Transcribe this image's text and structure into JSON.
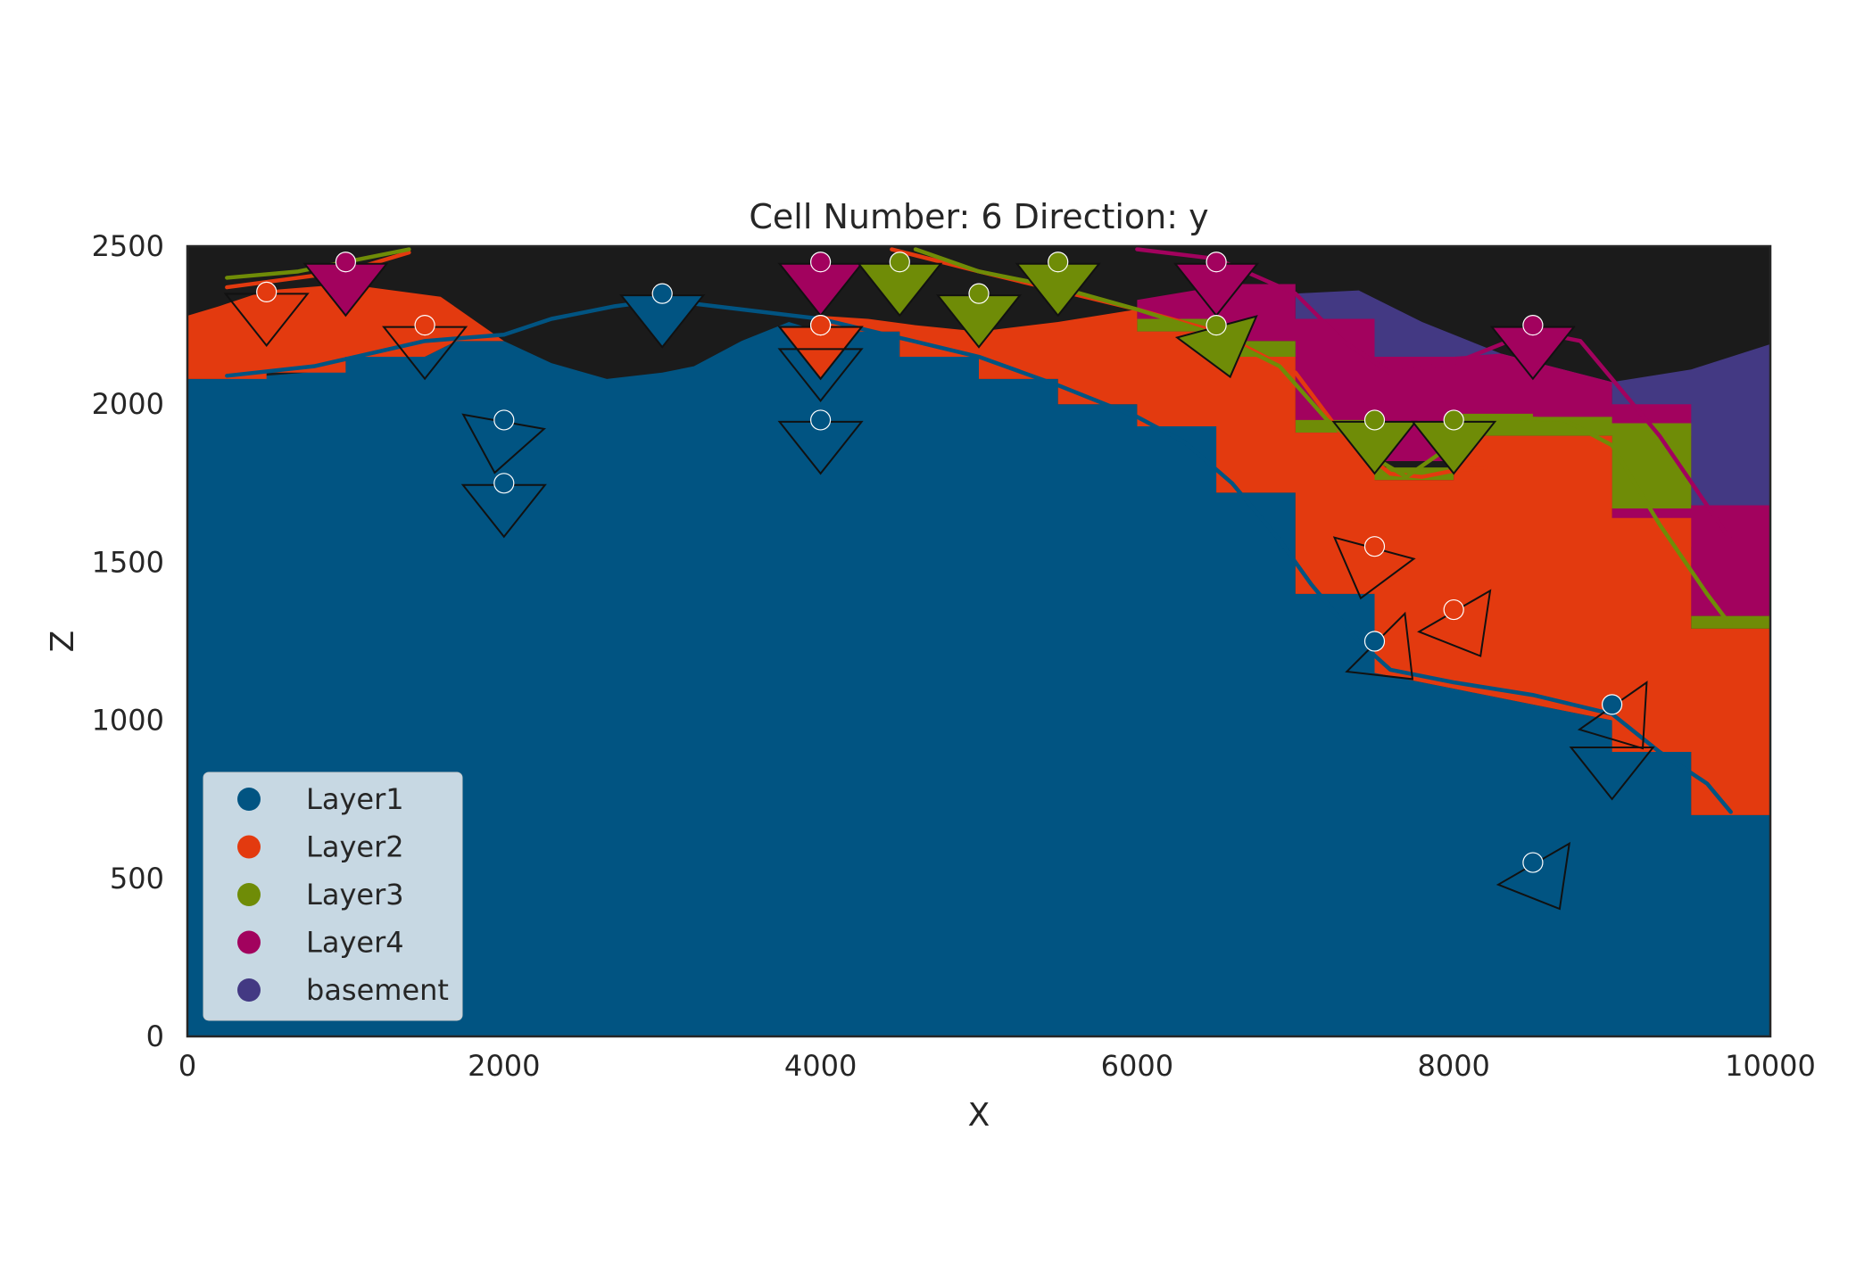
{
  "chart_data": {
    "type": "geological-section",
    "title": "Cell Number: 6 Direction: y",
    "xlabel": "X",
    "ylabel": "Z",
    "xlim": [
      0,
      10000
    ],
    "ylim": [
      0,
      2500
    ],
    "x_ticks": [
      0,
      2000,
      4000,
      6000,
      8000,
      10000
    ],
    "y_ticks": [
      0,
      500,
      1000,
      1500,
      2000,
      2500
    ],
    "grid": false,
    "legend_placement": "lower-left",
    "background_color": "#1b1b1b",
    "series": [
      {
        "name": "Layer1",
        "color": "#015482"
      },
      {
        "name": "Layer2",
        "color": "#e33a0f"
      },
      {
        "name": "Layer3",
        "color": "#6f8c07"
      },
      {
        "name": "Layer4",
        "color": "#a2025e"
      },
      {
        "name": "basement",
        "color": "#433983"
      }
    ],
    "regions": [
      {
        "layer": "basement",
        "polygon": [
          [
            7000,
            2350
          ],
          [
            7400,
            2360
          ],
          [
            7800,
            2260
          ],
          [
            8300,
            2160
          ],
          [
            9000,
            2070
          ],
          [
            9500,
            2110
          ],
          [
            10000,
            2190
          ],
          [
            10000,
            1350
          ],
          [
            9500,
            1350
          ],
          [
            9500,
            1900
          ],
          [
            9000,
            1900
          ],
          [
            9000,
            2050
          ],
          [
            7000,
            2050
          ]
        ]
      },
      {
        "layer": "Layer4",
        "polygon": [
          [
            6000,
            2330
          ],
          [
            6600,
            2380
          ],
          [
            7000,
            2380
          ],
          [
            7000,
            2270
          ],
          [
            7500,
            2270
          ],
          [
            7500,
            2150
          ],
          [
            8000,
            2150
          ],
          [
            8300,
            2160
          ],
          [
            9000,
            2070
          ],
          [
            9000,
            2000
          ],
          [
            9500,
            2000
          ],
          [
            9500,
            1680
          ],
          [
            10000,
            1680
          ],
          [
            10000,
            1330
          ],
          [
            9500,
            1330
          ],
          [
            9500,
            1550
          ],
          [
            9000,
            1550
          ],
          [
            9000,
            1650
          ],
          [
            9000,
            1900
          ],
          [
            8000,
            1900
          ],
          [
            8000,
            1820
          ],
          [
            7000,
            1820
          ],
          [
            7000,
            2200
          ],
          [
            6000,
            2200
          ]
        ]
      },
      {
        "layer": "Layer3",
        "polygon": [
          [
            6000,
            2270
          ],
          [
            6500,
            2270
          ],
          [
            6500,
            2200
          ],
          [
            7000,
            2200
          ],
          [
            7000,
            1950
          ],
          [
            7500,
            1950
          ],
          [
            7500,
            1800
          ],
          [
            8000,
            1800
          ],
          [
            8000,
            1970
          ],
          [
            8500,
            1970
          ],
          [
            8500,
            1960
          ],
          [
            9000,
            1960
          ],
          [
            9000,
            1940
          ],
          [
            9500,
            1940
          ],
          [
            9500,
            1670
          ],
          [
            9000,
            1670
          ],
          [
            9000,
            1700
          ],
          [
            9000,
            1900
          ],
          [
            8000,
            1900
          ],
          [
            8000,
            1760
          ],
          [
            7500,
            1760
          ],
          [
            7500,
            1910
          ],
          [
            7000,
            1910
          ],
          [
            7000,
            2150
          ],
          [
            6500,
            2150
          ],
          [
            6500,
            2230
          ],
          [
            6000,
            2230
          ]
        ]
      },
      {
        "layer": "Layer4",
        "polygon": [
          [
            9500,
            1680
          ],
          [
            10000,
            1680
          ],
          [
            10000,
            1330
          ],
          [
            9500,
            1330
          ]
        ]
      },
      {
        "layer": "Layer3",
        "polygon": [
          [
            9500,
            1330
          ],
          [
            10000,
            1330
          ],
          [
            10000,
            1290
          ],
          [
            9500,
            1290
          ]
        ]
      },
      {
        "layer": "Layer2",
        "polygon": [
          [
            0,
            2280
          ],
          [
            200,
            2310
          ],
          [
            500,
            2360
          ],
          [
            1000,
            2380
          ],
          [
            1600,
            2340
          ],
          [
            2000,
            2200
          ],
          [
            1700,
            2200
          ],
          [
            1500,
            2150
          ],
          [
            1000,
            2150
          ],
          [
            1000,
            2100
          ],
          [
            500,
            2100
          ],
          [
            500,
            2080
          ],
          [
            0,
            2080
          ]
        ]
      },
      {
        "layer": "Layer2",
        "polygon": [
          [
            4000,
            2280
          ],
          [
            4300,
            2270
          ],
          [
            4600,
            2250
          ],
          [
            5000,
            2230
          ],
          [
            5500,
            2260
          ],
          [
            6000,
            2300
          ],
          [
            6000,
            2230
          ],
          [
            6500,
            2230
          ],
          [
            6500,
            2150
          ],
          [
            7000,
            2150
          ],
          [
            7000,
            1910
          ],
          [
            7500,
            1910
          ],
          [
            7500,
            1760
          ],
          [
            8000,
            1760
          ],
          [
            8000,
            1900
          ],
          [
            9000,
            1900
          ],
          [
            9000,
            1640
          ],
          [
            9500,
            1640
          ],
          [
            9500,
            1290
          ],
          [
            10000,
            1290
          ],
          [
            10000,
            700
          ],
          [
            9500,
            700
          ],
          [
            9500,
            900
          ],
          [
            9000,
            900
          ],
          [
            9000,
            1000
          ],
          [
            8000,
            1100
          ],
          [
            7500,
            1150
          ],
          [
            7500,
            1400
          ],
          [
            7000,
            1400
          ],
          [
            7000,
            1720
          ],
          [
            6500,
            1720
          ],
          [
            6500,
            1930
          ],
          [
            6000,
            1930
          ],
          [
            6000,
            2000
          ],
          [
            5500,
            2000
          ],
          [
            5500,
            2080
          ],
          [
            5000,
            2080
          ],
          [
            5000,
            2150
          ],
          [
            4500,
            2150
          ],
          [
            4500,
            2230
          ],
          [
            4000,
            2230
          ]
        ]
      }
    ],
    "surfaces": [
      {
        "layer": "Layer1",
        "points": [
          [
            250,
            2090
          ],
          [
            800,
            2120
          ],
          [
            1500,
            2200
          ],
          [
            2000,
            2220
          ],
          [
            2300,
            2270
          ],
          [
            2700,
            2310
          ],
          [
            3000,
            2330
          ],
          [
            3500,
            2300
          ],
          [
            4000,
            2270
          ],
          [
            4500,
            2210
          ],
          [
            5000,
            2150
          ],
          [
            5500,
            2060
          ],
          [
            6000,
            1960
          ],
          [
            6300,
            1880
          ],
          [
            6600,
            1750
          ],
          [
            6900,
            1570
          ],
          [
            7100,
            1430
          ],
          [
            7400,
            1250
          ],
          [
            7600,
            1160
          ],
          [
            8000,
            1120
          ],
          [
            8500,
            1080
          ],
          [
            9000,
            1020
          ],
          [
            9300,
            900
          ],
          [
            9600,
            800
          ],
          [
            9750,
            710
          ]
        ]
      },
      {
        "layer": "Layer2",
        "points": [
          [
            250,
            2370
          ],
          [
            700,
            2400
          ],
          [
            1000,
            2420
          ],
          [
            1400,
            2480
          ]
        ]
      },
      {
        "layer": "Layer2",
        "points": [
          [
            4450,
            2490
          ],
          [
            5000,
            2420
          ],
          [
            5500,
            2360
          ],
          [
            6000,
            2300
          ],
          [
            6500,
            2230
          ],
          [
            7000,
            2100
          ],
          [
            7300,
            1900
          ],
          [
            7600,
            1780
          ],
          [
            7800,
            1770
          ],
          [
            8000,
            1790
          ],
          [
            8200,
            1800
          ]
        ]
      },
      {
        "layer": "Layer3",
        "points": [
          [
            250,
            2400
          ],
          [
            700,
            2420
          ],
          [
            1100,
            2460
          ],
          [
            1400,
            2490
          ]
        ]
      },
      {
        "layer": "Layer3",
        "points": [
          [
            4600,
            2490
          ],
          [
            5000,
            2420
          ],
          [
            5500,
            2370
          ],
          [
            6000,
            2300
          ],
          [
            6500,
            2220
          ],
          [
            6900,
            2120
          ],
          [
            7200,
            1950
          ],
          [
            7500,
            1830
          ],
          [
            7700,
            1770
          ],
          [
            7900,
            1840
          ],
          [
            8200,
            1960
          ],
          [
            8700,
            1950
          ],
          [
            9000,
            1870
          ],
          [
            9300,
            1620
          ],
          [
            9600,
            1400
          ],
          [
            9750,
            1300
          ]
        ]
      },
      {
        "layer": "Layer4",
        "points": [
          [
            6000,
            2490
          ],
          [
            6500,
            2460
          ],
          [
            7000,
            2350
          ],
          [
            7300,
            2200
          ],
          [
            7600,
            2100
          ],
          [
            8000,
            2130
          ],
          [
            8500,
            2230
          ],
          [
            8800,
            2200
          ],
          [
            9000,
            2080
          ],
          [
            9300,
            1900
          ],
          [
            9600,
            1680
          ],
          [
            9750,
            1570
          ]
        ]
      }
    ],
    "points": [
      {
        "layer": "Layer2",
        "x": 500,
        "z": 2355
      },
      {
        "layer": "Layer4",
        "x": 1000,
        "z": 2450
      },
      {
        "layer": "Layer2",
        "x": 1500,
        "z": 2250
      },
      {
        "layer": "Layer1",
        "x": 2000,
        "z": 1950
      },
      {
        "layer": "Layer1",
        "x": 2000,
        "z": 1750
      },
      {
        "layer": "Layer1",
        "x": 3000,
        "z": 2350
      },
      {
        "layer": "Layer4",
        "x": 4000,
        "z": 2450
      },
      {
        "layer": "Layer1",
        "x": 4000,
        "z": 2250
      },
      {
        "layer": "Layer2",
        "x": 4000,
        "z": 2250
      },
      {
        "layer": "Layer1",
        "x": 4000,
        "z": 1950
      },
      {
        "layer": "Layer3",
        "x": 4500,
        "z": 2450
      },
      {
        "layer": "Layer3",
        "x": 5000,
        "z": 2350
      },
      {
        "layer": "Layer3",
        "x": 5500,
        "z": 2450
      },
      {
        "layer": "Layer4",
        "x": 6500,
        "z": 2450
      },
      {
        "layer": "Layer3",
        "x": 6500,
        "z": 2250
      },
      {
        "layer": "Layer3",
        "x": 7500,
        "z": 1950
      },
      {
        "layer": "Layer3",
        "x": 8000,
        "z": 1950
      },
      {
        "layer": "Layer2",
        "x": 7500,
        "z": 1550
      },
      {
        "layer": "Layer2",
        "x": 8000,
        "z": 1350
      },
      {
        "layer": "Layer1",
        "x": 7500,
        "z": 1250
      },
      {
        "layer": "Layer1",
        "x": 9000,
        "z": 1050
      },
      {
        "layer": "Layer4",
        "x": 8500,
        "z": 2250
      },
      {
        "layer": "Layer1",
        "x": 8500,
        "z": 550
      }
    ],
    "orientations": [
      {
        "layer": "Layer2",
        "x": 500,
        "z": 2355,
        "azimuth_deg": 0,
        "filled": false
      },
      {
        "layer": "Layer4",
        "x": 1000,
        "z": 2450,
        "azimuth_deg": 0,
        "filled": true
      },
      {
        "layer": "Layer2",
        "x": 1500,
        "z": 2250,
        "azimuth_deg": 0,
        "filled": false
      },
      {
        "layer": "Layer1",
        "x": 2000,
        "z": 1950,
        "azimuth_deg": 10,
        "filled": false
      },
      {
        "layer": "Layer1",
        "x": 2000,
        "z": 1750,
        "azimuth_deg": 0,
        "filled": false
      },
      {
        "layer": "Layer1",
        "x": 3000,
        "z": 2350,
        "azimuth_deg": 0,
        "filled": true
      },
      {
        "layer": "Layer4",
        "x": 4000,
        "z": 2450,
        "azimuth_deg": 0,
        "filled": true
      },
      {
        "layer": "Layer1",
        "x": 4000,
        "z": 2250,
        "azimuth_deg": 0,
        "filled": true
      },
      {
        "layer": "Layer2",
        "x": 4000,
        "z": 2250,
        "azimuth_deg": 0,
        "filled": true
      },
      {
        "layer": "Layer1",
        "x": 4000,
        "z": 2180,
        "azimuth_deg": 0,
        "filled": false
      },
      {
        "layer": "Layer1",
        "x": 4000,
        "z": 1950,
        "azimuth_deg": 0,
        "filled": false
      },
      {
        "layer": "Layer3",
        "x": 4500,
        "z": 2450,
        "azimuth_deg": 0,
        "filled": true
      },
      {
        "layer": "Layer3",
        "x": 5000,
        "z": 2350,
        "azimuth_deg": 0,
        "filled": true
      },
      {
        "layer": "Layer3",
        "x": 5500,
        "z": 2450,
        "azimuth_deg": 0,
        "filled": true
      },
      {
        "layer": "Layer4",
        "x": 6500,
        "z": 2450,
        "azimuth_deg": 0,
        "filled": true
      },
      {
        "layer": "Layer3",
        "x": 6500,
        "z": 2250,
        "azimuth_deg": -15,
        "filled": true
      },
      {
        "layer": "Layer3",
        "x": 7500,
        "z": 1950,
        "azimuth_deg": 0,
        "filled": true
      },
      {
        "layer": "Layer3",
        "x": 8000,
        "z": 1950,
        "azimuth_deg": 0,
        "filled": true
      },
      {
        "layer": "Layer2",
        "x": 7500,
        "z": 1550,
        "azimuth_deg": 15,
        "filled": false
      },
      {
        "layer": "Layer2",
        "x": 8000,
        "z": 1350,
        "azimuth_deg": -30,
        "filled": false
      },
      {
        "layer": "Layer1",
        "x": 7500,
        "z": 1250,
        "azimuth_deg": -45,
        "filled": false
      },
      {
        "layer": "Layer1",
        "x": 9000,
        "z": 1050,
        "azimuth_deg": -35,
        "filled": false
      },
      {
        "layer": "Layer1",
        "x": 9000,
        "z": 920,
        "azimuth_deg": 0,
        "filled": false
      },
      {
        "layer": "Layer4",
        "x": 8500,
        "z": 2250,
        "azimuth_deg": 0,
        "filled": true
      },
      {
        "layer": "Layer1",
        "x": 8500,
        "z": 550,
        "azimuth_deg": -30,
        "filled": false
      }
    ]
  }
}
